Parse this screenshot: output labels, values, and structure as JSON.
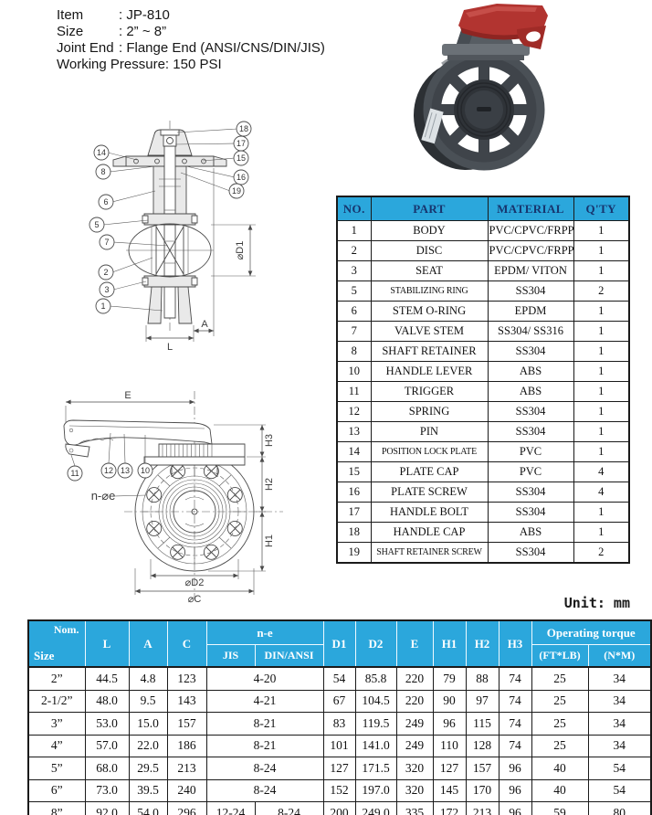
{
  "info": {
    "lines": [
      {
        "label": "Item",
        "value": ": JP-810"
      },
      {
        "label": "Size",
        "value": ": 2” ~ 8”"
      },
      {
        "label": "Joint End",
        "value": ": Flange End (ANSI/CNS/DIN/JIS)"
      },
      {
        "label": "Working Pressure:",
        "value": "150 PSI"
      }
    ]
  },
  "colors": {
    "table_header_bg": "#2ba7dc",
    "parts_header_text": "#17356e",
    "handle_red": "#b23430"
  },
  "diagram1": {
    "callouts": [
      "18",
      "17",
      "15",
      "16",
      "19",
      "14",
      "8",
      "6",
      "5",
      "7",
      "2",
      "3",
      "1"
    ],
    "dims": {
      "d1": "⌀D1",
      "l": "L",
      "a": "A"
    }
  },
  "diagram2": {
    "callouts": [
      "11",
      "12",
      "13",
      "10"
    ],
    "dims": {
      "e": "E",
      "h3": "H3",
      "h2": "H2",
      "h1": "H1",
      "d2": "⌀D2",
      "c": "⌀C",
      "ne": "n-⌀e"
    }
  },
  "parts_table": {
    "headers": [
      "NO.",
      "PART",
      "MATERIAL",
      "Q'TY"
    ],
    "rows": [
      [
        "1",
        "BODY",
        "PVC/CPVC/FRPP",
        "1"
      ],
      [
        "2",
        "DISC",
        "PVC/CPVC/FRPP",
        "1"
      ],
      [
        "3",
        "SEAT",
        "EPDM/ VITON",
        "1"
      ],
      [
        "5",
        "STABILIZING RING",
        "SS304",
        "2"
      ],
      [
        "6",
        "STEM O-RING",
        "EPDM",
        "1"
      ],
      [
        "7",
        "VALVE STEM",
        "SS304/ SS316",
        "1"
      ],
      [
        "8",
        "SHAFT RETAINER",
        "SS304",
        "1"
      ],
      [
        "10",
        "HANDLE LEVER",
        "ABS",
        "1"
      ],
      [
        "11",
        "TRIGGER",
        "ABS",
        "1"
      ],
      [
        "12",
        "SPRING",
        "SS304",
        "1"
      ],
      [
        "13",
        "PIN",
        "SS304",
        "1"
      ],
      [
        "14",
        "POSITION LOCK PLATE",
        "PVC",
        "1"
      ],
      [
        "15",
        "PLATE CAP",
        "PVC",
        "4"
      ],
      [
        "16",
        "PLATE SCREW",
        "SS304",
        "4"
      ],
      [
        "17",
        "HANDLE BOLT",
        "SS304",
        "1"
      ],
      [
        "18",
        "HANDLE CAP",
        "ABS",
        "1"
      ],
      [
        "19",
        "SHAFT RETAINER SCREW",
        "SS304",
        "2"
      ]
    ]
  },
  "dims_table": {
    "unit": "Unit: mm",
    "corner_top": "Nom.",
    "corner_bottom": "Size",
    "h_l": "L",
    "h_a": "A",
    "h_c": "C",
    "h_ne": "n-e",
    "h_jis": "JIS",
    "h_din": "DIN/ANSI",
    "h_d1": "D1",
    "h_d2": "D2",
    "h_e": "E",
    "h_h1": "H1",
    "h_h2": "H2",
    "h_h3": "H3",
    "h_torque": "Operating torque",
    "h_ftlb": "(FT*LB)",
    "h_nm": "(N*M)",
    "rows": [
      {
        "size": "2”",
        "l": "44.5",
        "a": "4.8",
        "c": "123",
        "jis": "4-20",
        "din": null,
        "d1": "54",
        "d2": "85.8",
        "e": "220",
        "h1": "79",
        "h2": "88",
        "h3": "74",
        "ftlb": "25",
        "nm": "34"
      },
      {
        "size": "2-1/2”",
        "l": "48.0",
        "a": "9.5",
        "c": "143",
        "jis": "4-21",
        "din": null,
        "d1": "67",
        "d2": "104.5",
        "e": "220",
        "h1": "90",
        "h2": "97",
        "h3": "74",
        "ftlb": "25",
        "nm": "34"
      },
      {
        "size": "3”",
        "l": "53.0",
        "a": "15.0",
        "c": "157",
        "jis": "8-21",
        "din": null,
        "d1": "83",
        "d2": "119.5",
        "e": "249",
        "h1": "96",
        "h2": "115",
        "h3": "74",
        "ftlb": "25",
        "nm": "34"
      },
      {
        "size": "4”",
        "l": "57.0",
        "a": "22.0",
        "c": "186",
        "jis": "8-21",
        "din": null,
        "d1": "101",
        "d2": "141.0",
        "e": "249",
        "h1": "110",
        "h2": "128",
        "h3": "74",
        "ftlb": "25",
        "nm": "34"
      },
      {
        "size": "5”",
        "l": "68.0",
        "a": "29.5",
        "c": "213",
        "jis": "8-24",
        "din": null,
        "d1": "127",
        "d2": "171.5",
        "e": "320",
        "h1": "127",
        "h2": "157",
        "h3": "96",
        "ftlb": "40",
        "nm": "54"
      },
      {
        "size": "6”",
        "l": "73.0",
        "a": "39.5",
        "c": "240",
        "jis": "8-24",
        "din": null,
        "d1": "152",
        "d2": "197.0",
        "e": "320",
        "h1": "145",
        "h2": "170",
        "h3": "96",
        "ftlb": "40",
        "nm": "54"
      },
      {
        "size": "8”",
        "l": "92.0",
        "a": "54.0",
        "c": "296",
        "jis": "12-24",
        "din": "8-24",
        "d1": "200",
        "d2": "249.0",
        "e": "335",
        "h1": "172",
        "h2": "213",
        "h3": "96",
        "ftlb": "59",
        "nm": "80"
      }
    ]
  }
}
